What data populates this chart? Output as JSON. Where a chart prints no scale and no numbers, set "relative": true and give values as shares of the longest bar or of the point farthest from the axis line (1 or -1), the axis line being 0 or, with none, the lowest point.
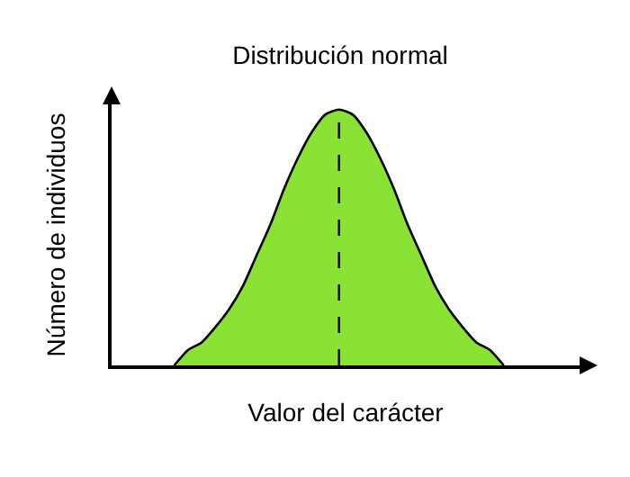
{
  "chart_data": {
    "type": "area",
    "title": "Distribución normal",
    "xlabel": "Valor del carácter",
    "ylabel": "Número de individuos",
    "relative": true,
    "categories": [
      null,
      null,
      null,
      null,
      null,
      null,
      null,
      null,
      null,
      null,
      null,
      null,
      null,
      null,
      null,
      null,
      null,
      null,
      null,
      null,
      null,
      null,
      null,
      null,
      null
    ],
    "series": [
      {
        "color": "#8ae234",
        "values": [
          0,
          0.06,
          0.09,
          0.15,
          0.22,
          0.31,
          0.43,
          0.55,
          0.69,
          0.81,
          0.91,
          0.98,
          1,
          0.98,
          0.91,
          0.81,
          0.69,
          0.55,
          0.43,
          0.31,
          0.22,
          0.15,
          0.09,
          0.06,
          0
        ]
      }
    ],
    "line_style": "solid"
  }
}
